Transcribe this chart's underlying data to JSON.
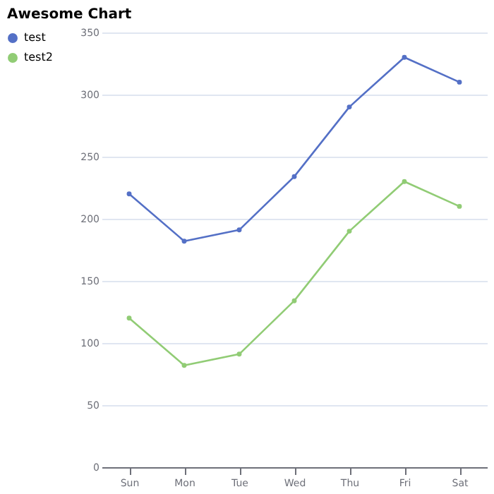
{
  "chart_data": {
    "type": "line",
    "title": "Awesome Chart",
    "categories": [
      "Sun",
      "Mon",
      "Tue",
      "Wed",
      "Thu",
      "Fri",
      "Sat"
    ],
    "series": [
      {
        "name": "test",
        "color": "#5470c6",
        "values": [
          220,
          182,
          191,
          234,
          290,
          330,
          310
        ]
      },
      {
        "name": "test2",
        "color": "#91cc75",
        "values": [
          120,
          82,
          91,
          134,
          190,
          230,
          210
        ]
      }
    ],
    "ylim": [
      0,
      350
    ],
    "yticks": [
      0,
      50,
      100,
      150,
      200,
      250,
      300,
      350
    ],
    "grid": "y",
    "legend": "left",
    "marker": "circle",
    "line_style": "solid"
  }
}
